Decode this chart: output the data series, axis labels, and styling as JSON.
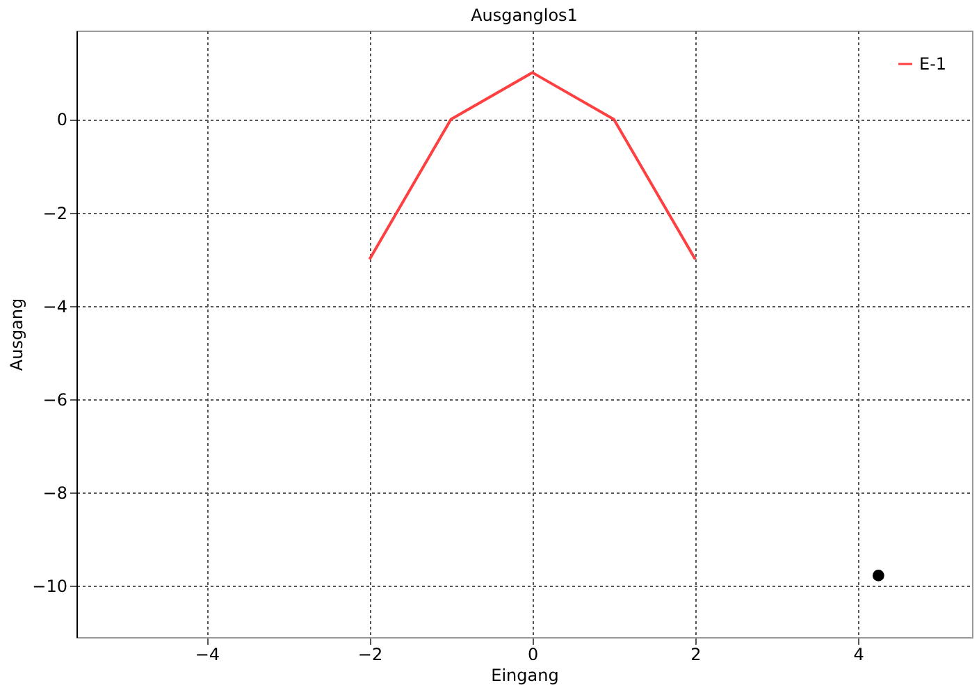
{
  "chart_data": {
    "type": "line",
    "title": "Ausganglos1",
    "xlabel": "Eingang",
    "ylabel": "Ausgang",
    "series": [
      {
        "name": "E-1",
        "color": "#ff4040",
        "x": [
          -2,
          -1,
          0,
          1,
          2
        ],
        "values": [
          -3,
          0,
          1,
          0,
          -3
        ]
      },
      {
        "type": "scatter",
        "marker": "circle",
        "color": "#000000",
        "x": [
          4.25
        ],
        "values": [
          -9.78
        ]
      }
    ],
    "xlim": [
      -5.6,
      5.4
    ],
    "xticks": [
      -4,
      -2,
      0,
      2,
      4
    ],
    "ylim": [
      -11.1,
      1.9
    ],
    "yticks": [
      -10,
      -8,
      -6,
      -4,
      -2,
      0
    ],
    "grid": true,
    "legend": "top right",
    "marker": "none"
  }
}
